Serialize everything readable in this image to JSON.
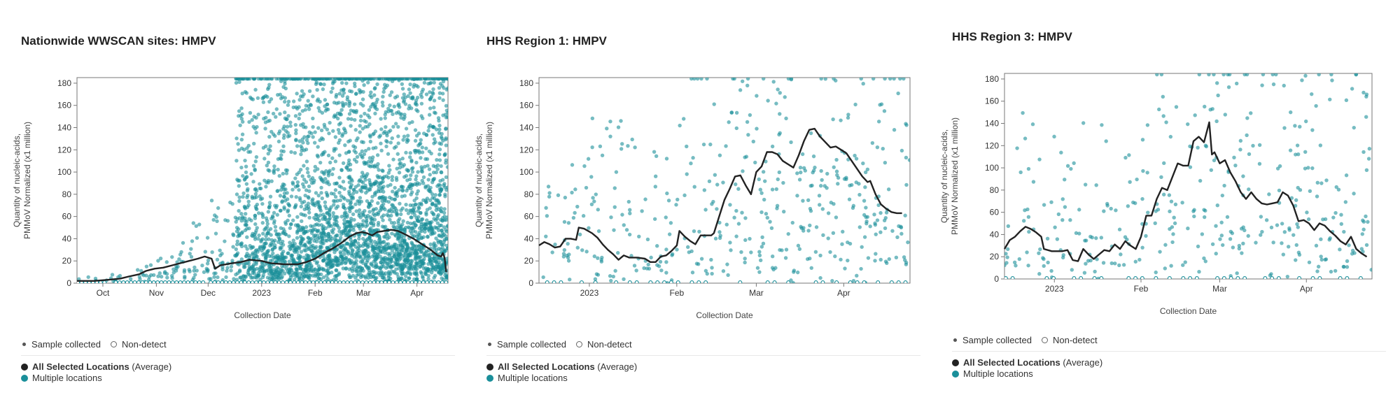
{
  "colors": {
    "points": "#1a8f9a",
    "line": "#222222",
    "axis": "#555555",
    "nondetect": "#1a8f9a"
  },
  "legend": {
    "sample_collected": "Sample collected",
    "non_detect": "Non-detect",
    "all_selected": "All Selected Locations",
    "average": " (Average)",
    "multiple": "Multiple locations"
  },
  "chart_data": [
    {
      "type": "scatter",
      "title": "Nationwide WWSCAN sites: HMPV",
      "xlabel": "Collection Date",
      "ylabel": [
        "Quantity of nucleic-acids,",
        "PMMoV Normalized (x1 million)"
      ],
      "ylim": [
        0,
        185
      ],
      "yticks": [
        0,
        20,
        40,
        60,
        80,
        100,
        120,
        140,
        160,
        180
      ],
      "xlim": [
        0,
        215
      ],
      "xticks": [
        {
          "label": "Oct",
          "x": 15
        },
        {
          "label": "Nov",
          "x": 46
        },
        {
          "label": "Dec",
          "x": 76
        },
        {
          "label": "2023",
          "x": 107
        },
        {
          "label": "Feb",
          "x": 138
        },
        {
          "label": "Mar",
          "x": 166
        },
        {
          "label": "Apr",
          "x": 197
        }
      ],
      "scatter_density": [
        0.4,
        0.6,
        1.0,
        1.6,
        2.2,
        3.0,
        18,
        22,
        24,
        26,
        27,
        28,
        30,
        30
      ],
      "scatter_spread": [
        8,
        10,
        18,
        30,
        55,
        80,
        185,
        185,
        185,
        185,
        185,
        185,
        185,
        185
      ],
      "series": [
        {
          "name": "All Selected Locations (Average)",
          "points": [
            [
              0,
              2
            ],
            [
              10,
              2
            ],
            [
              18,
              3
            ],
            [
              25,
              4
            ],
            [
              30,
              6
            ],
            [
              36,
              8
            ],
            [
              40,
              11
            ],
            [
              45,
              13
            ],
            [
              50,
              14
            ],
            [
              55,
              16
            ],
            [
              60,
              18
            ],
            [
              65,
              20
            ],
            [
              70,
              22
            ],
            [
              74,
              24
            ],
            [
              78,
              22
            ],
            [
              80,
              13
            ],
            [
              83,
              16
            ],
            [
              90,
              18
            ],
            [
              95,
              19
            ],
            [
              100,
              21
            ],
            [
              107,
              20
            ],
            [
              112,
              18
            ],
            [
              120,
              17
            ],
            [
              128,
              17
            ],
            [
              133,
              19
            ],
            [
              138,
              22
            ],
            [
              143,
              27
            ],
            [
              148,
              31
            ],
            [
              153,
              36
            ],
            [
              158,
              42
            ],
            [
              162,
              45
            ],
            [
              165,
              46
            ],
            [
              168,
              45
            ],
            [
              171,
              43
            ],
            [
              174,
              46
            ],
            [
              178,
              47
            ],
            [
              182,
              48
            ],
            [
              186,
              47
            ],
            [
              190,
              44
            ],
            [
              195,
              40
            ],
            [
              200,
              35
            ],
            [
              205,
              30
            ],
            [
              209,
              25
            ],
            [
              211,
              24
            ],
            [
              212,
              27
            ],
            [
              213,
              23
            ],
            [
              214,
              10
            ]
          ]
        }
      ]
    },
    {
      "type": "scatter",
      "title": "HHS Region 1: HMPV",
      "xlabel": "Collection Date",
      "ylabel": [
        "Quantity of nucleic-acids,",
        "PMMoV Normalized (x1 million)"
      ],
      "ylim": [
        0,
        185
      ],
      "yticks": [
        0,
        20,
        40,
        60,
        80,
        100,
        120,
        140,
        160,
        180
      ],
      "xlim": [
        0,
        140
      ],
      "xticks": [
        {
          "label": "2023",
          "x": 19
        },
        {
          "label": "Feb",
          "x": 52
        },
        {
          "label": "Mar",
          "x": 82
        },
        {
          "label": "Apr",
          "x": 115
        }
      ],
      "scatter_density": [
        2,
        2.5,
        2.5,
        2.5,
        3,
        3.5,
        4,
        4,
        4,
        4
      ],
      "scatter_spread": [
        150,
        150,
        150,
        150,
        185,
        185,
        185,
        185,
        185,
        185
      ],
      "series": [
        {
          "name": "All Selected Locations (Average)",
          "points": [
            [
              0,
              34
            ],
            [
              2,
              37
            ],
            [
              4,
              35
            ],
            [
              6,
              32
            ],
            [
              8,
              33
            ],
            [
              10,
              40
            ],
            [
              12,
              40
            ],
            [
              14,
              39
            ],
            [
              15,
              50
            ],
            [
              17,
              49
            ],
            [
              20,
              45
            ],
            [
              22,
              41
            ],
            [
              24,
              35
            ],
            [
              26,
              30
            ],
            [
              28,
              26
            ],
            [
              30,
              21
            ],
            [
              32,
              25
            ],
            [
              34,
              23
            ],
            [
              37,
              23
            ],
            [
              40,
              22
            ],
            [
              42,
              19
            ],
            [
              44,
              19
            ],
            [
              46,
              24
            ],
            [
              48,
              25
            ],
            [
              50,
              29
            ],
            [
              52,
              34
            ],
            [
              53,
              47
            ],
            [
              55,
              42
            ],
            [
              57,
              38
            ],
            [
              59,
              35
            ],
            [
              61,
              43
            ],
            [
              65,
              43
            ],
            [
              66,
              45
            ],
            [
              68,
              60
            ],
            [
              70,
              75
            ],
            [
              72,
              85
            ],
            [
              74,
              96
            ],
            [
              76,
              97
            ],
            [
              78,
              88
            ],
            [
              80,
              80
            ],
            [
              81,
              90
            ],
            [
              82,
              100
            ],
            [
              84,
              105
            ],
            [
              86,
              118
            ],
            [
              88,
              118
            ],
            [
              90,
              116
            ],
            [
              92,
              110
            ],
            [
              94,
              107
            ],
            [
              96,
              104
            ],
            [
              98,
              115
            ],
            [
              100,
              128
            ],
            [
              102,
              138
            ],
            [
              104,
              139
            ],
            [
              106,
              132
            ],
            [
              108,
              127
            ],
            [
              110,
              122
            ],
            [
              112,
              123
            ],
            [
              114,
              120
            ],
            [
              116,
              117
            ],
            [
              118,
              110
            ],
            [
              120,
              103
            ],
            [
              122,
              96
            ],
            [
              124,
              91
            ],
            [
              125,
              92
            ],
            [
              127,
              80
            ],
            [
              129,
              71
            ],
            [
              131,
              67
            ],
            [
              133,
              64
            ],
            [
              135,
              63
            ],
            [
              137,
              63
            ]
          ]
        }
      ]
    },
    {
      "type": "scatter",
      "title": "HHS Region 3: HMPV",
      "xlabel": "Collection Date",
      "ylabel": [
        "Quantity of nucleic-acids,",
        "PMMoV Normalized (x1 million)"
      ],
      "ylim": [
        0,
        185
      ],
      "yticks": [
        0,
        20,
        40,
        60,
        80,
        100,
        120,
        140,
        160,
        180
      ],
      "xlim": [
        0,
        140
      ],
      "xticks": [
        {
          "label": "2023",
          "x": 19
        },
        {
          "label": "Feb",
          "x": 52
        },
        {
          "label": "Mar",
          "x": 82
        },
        {
          "label": "Apr",
          "x": 115
        }
      ],
      "scatter_density": [
        2,
        2,
        2,
        2,
        2.5,
        3,
        3,
        3,
        3,
        3
      ],
      "scatter_spread": [
        150,
        150,
        150,
        150,
        185,
        185,
        185,
        185,
        185,
        185
      ],
      "series": [
        {
          "name": "All Selected Locations (Average)",
          "points": [
            [
              0,
              27
            ],
            [
              2,
              35
            ],
            [
              4,
              38
            ],
            [
              6,
              43
            ],
            [
              8,
              47
            ],
            [
              10,
              45
            ],
            [
              12,
              42
            ],
            [
              14,
              38
            ],
            [
              15,
              27
            ],
            [
              18,
              25
            ],
            [
              22,
              25
            ],
            [
              24,
              26
            ],
            [
              26,
              17
            ],
            [
              28,
              16
            ],
            [
              30,
              27
            ],
            [
              32,
              22
            ],
            [
              34,
              18
            ],
            [
              36,
              22
            ],
            [
              38,
              26
            ],
            [
              40,
              25
            ],
            [
              42,
              31
            ],
            [
              44,
              27
            ],
            [
              46,
              34
            ],
            [
              48,
              30
            ],
            [
              50,
              27
            ],
            [
              52,
              38
            ],
            [
              54,
              57
            ],
            [
              56,
              57
            ],
            [
              58,
              72
            ],
            [
              60,
              82
            ],
            [
              62,
              80
            ],
            [
              64,
              92
            ],
            [
              66,
              104
            ],
            [
              68,
              102
            ],
            [
              70,
              102
            ],
            [
              72,
              124
            ],
            [
              74,
              128
            ],
            [
              76,
              123
            ],
            [
              78,
              141
            ],
            [
              79,
              112
            ],
            [
              80,
              114
            ],
            [
              82,
              104
            ],
            [
              84,
              107
            ],
            [
              86,
              96
            ],
            [
              88,
              88
            ],
            [
              90,
              78
            ],
            [
              92,
              72
            ],
            [
              94,
              78
            ],
            [
              96,
              72
            ],
            [
              98,
              68
            ],
            [
              100,
              67
            ],
            [
              102,
              68
            ],
            [
              104,
              69
            ],
            [
              106,
              78
            ],
            [
              108,
              75
            ],
            [
              110,
              66
            ],
            [
              112,
              52
            ],
            [
              114,
              53
            ],
            [
              116,
              50
            ],
            [
              118,
              44
            ],
            [
              120,
              50
            ],
            [
              122,
              48
            ],
            [
              124,
              43
            ],
            [
              126,
              39
            ],
            [
              128,
              34
            ],
            [
              130,
              31
            ],
            [
              132,
              38
            ],
            [
              134,
              27
            ],
            [
              136,
              23
            ],
            [
              138,
              20
            ]
          ]
        }
      ]
    }
  ]
}
